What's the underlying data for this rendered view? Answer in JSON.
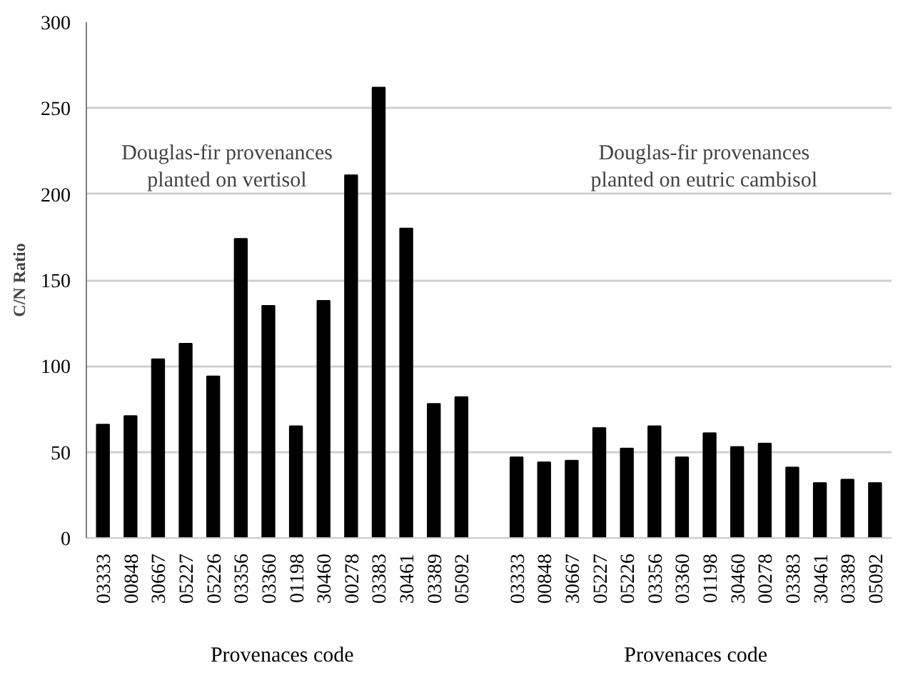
{
  "chart_data": {
    "type": "bar",
    "ylabel": "C/N Ratio",
    "xlabel": "Provenaces code",
    "categories": [
      "03333",
      "00848",
      "30667",
      "05227",
      "05226",
      "03356",
      "03360",
      "01198",
      "30460",
      "00278",
      "03383",
      "30461",
      "03389",
      "05092",
      null,
      "03333",
      "00848",
      "30667",
      "05227",
      "05226",
      "03356",
      "03360",
      "01198",
      "30460",
      "00278",
      "03383",
      "30461",
      "03389",
      "05092"
    ],
    "values": [
      66,
      71,
      104,
      113,
      94,
      174,
      135,
      65,
      138,
      211,
      262,
      180,
      78,
      82,
      null,
      47,
      44,
      45,
      64,
      52,
      65,
      47,
      61,
      53,
      55,
      41,
      32,
      34,
      32
    ],
    "color": "#000000",
    "ylim": [
      0,
      300
    ],
    "yticks": [
      0,
      50,
      100,
      150,
      200,
      250,
      300
    ],
    "grid": "y",
    "annotations": [
      "Douglas-fir provenances\nplanted on vertisol",
      "Douglas-fir provenances\nplanted on eutric cambisol",
      "Provenaces code"
    ]
  }
}
